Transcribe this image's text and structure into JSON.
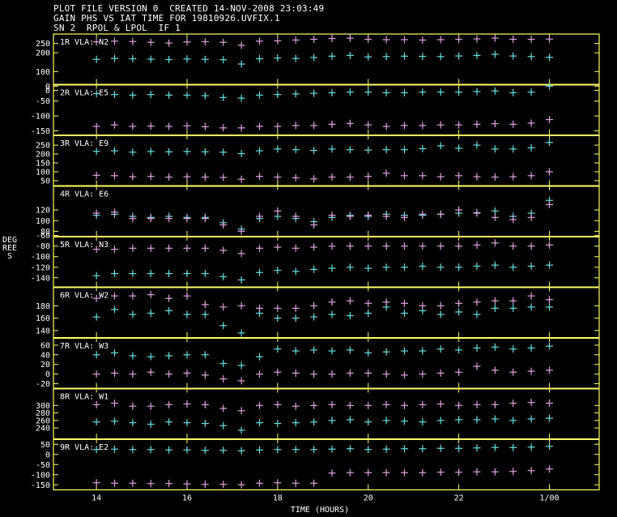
{
  "header": {
    "line1": "PLOT FILE VERSION 0  CREATED 14-NOV-2008 23:03:49",
    "line2": "GAIN PHS VS IAT TIME FOR 19810926.UVFIX.1",
    "line3": "SN 2  RPOL & LPOL  IF 1"
  },
  "chart_data": {
    "type": "scatter",
    "xlabel": "TIME (HOURS)",
    "ylabel": "DEGREES",
    "xlim": [
      13.05,
      25.1
    ],
    "x_ticks": [
      14,
      16,
      18,
      20,
      22,
      24
    ],
    "x_tick_labels": [
      "14",
      "16",
      "18",
      "20",
      "22",
      "1/00"
    ],
    "x": [
      14.0,
      14.4,
      14.8,
      15.2,
      15.6,
      16.0,
      16.4,
      16.8,
      17.2,
      17.6,
      18.0,
      18.4,
      18.8,
      19.2,
      19.6,
      20.0,
      20.4,
      20.8,
      21.2,
      21.6,
      22.0,
      22.4,
      22.8,
      23.2,
      23.6,
      24.0
    ],
    "colors": {
      "rpol": "#66e0e0",
      "lpol": "#e0a0e0",
      "panel_border": "#ffff66"
    },
    "panels": [
      {
        "label": "1R VLA: N2",
        "ylim": [
          30,
          300
        ],
        "y_ticks": [
          250,
          200,
          100,
          0
        ],
        "y_tick_labels": [
          "250",
          "200",
          "100",
          "0"
        ],
        "series": [
          {
            "pol": "rpol",
            "values": [
              165,
              170,
              168,
              166,
              164,
              167,
              165,
              163,
              140,
              168,
              172,
              170,
              175,
              182,
              186,
              178,
              180,
              182,
              181,
              180,
              183,
              186,
              192,
              183,
              180,
              176
            ]
          },
          {
            "pol": "lpol",
            "values": [
              258,
              262,
              260,
              256,
              252,
              258,
              259,
              256,
              240,
              262,
              264,
              268,
              272,
              276,
              278,
              272,
              270,
              270,
              268,
              270,
              272,
              274,
              278,
              272,
              272,
              273
            ]
          }
        ]
      },
      {
        "label": "2R VLA: E5",
        "ylim": [
          -165,
          5
        ],
        "y_ticks": [
          0,
          -50,
          -100,
          -150
        ],
        "y_tick_labels": [
          "0",
          "-50",
          "-100",
          "-150"
        ],
        "series": [
          {
            "pol": "rpol",
            "values": [
              -25,
              -28,
              -30,
              -28,
              -30,
              -30,
              -32,
              -38,
              -40,
              -30,
              -28,
              -26,
              -24,
              -22,
              -20,
              -20,
              -22,
              -22,
              -20,
              -20,
              -20,
              -18,
              -16,
              -22,
              -20,
              0
            ]
          },
          {
            "pol": "lpol",
            "values": [
              -135,
              -130,
              -135,
              -134,
              -135,
              -133,
              -136,
              -140,
              -140,
              -135,
              -135,
              -132,
              -132,
              -128,
              -125,
              -130,
              -135,
              -132,
              -132,
              -130,
              -130,
              -128,
              -126,
              -128,
              -124,
              -112
            ]
          }
        ]
      },
      {
        "label": "3R VLA: E9",
        "ylim": [
          20,
          305
        ],
        "y_ticks": [
          250,
          200,
          150,
          100,
          50
        ],
        "y_tick_labels": [
          "250",
          "200",
          "150",
          "100",
          "50"
        ],
        "series": [
          {
            "pol": "rpol",
            "values": [
              215,
              218,
              210,
              214,
              212,
              214,
              212,
              210,
              202,
              218,
              228,
              224,
              220,
              228,
              224,
              222,
              224,
              224,
              230,
              246,
              232,
              250,
              228,
              228,
              235,
              265
            ]
          },
          {
            "pol": "lpol",
            "values": [
              80,
              78,
              72,
              74,
              70,
              72,
              70,
              68,
              58,
              74,
              70,
              66,
              60,
              70,
              70,
              74,
              92,
              78,
              78,
              72,
              78,
              72,
              70,
              72,
              78,
              100
            ]
          }
        ]
      },
      {
        "label": "4R VLA: E6",
        "ylim": [
          70,
          165
        ],
        "y_ticks": [
          120,
          100,
          80
        ],
        "y_tick_labels": [
          "120",
          "100",
          "80"
        ],
        "series": [
          {
            "pol": "rpol",
            "values": [
              110,
              112,
              108,
              106,
              108,
              106,
              106,
              96,
              84,
              104,
              108,
              104,
              98,
              106,
              110,
              108,
              112,
              110,
              110,
              112,
              114,
              115,
              118,
              108,
              114,
              138
            ]
          },
          {
            "pol": "lpol",
            "values": [
              114,
              116,
              104,
              104,
              104,
              104,
              104,
              92,
              80,
              108,
              118,
              108,
              92,
              110,
              108,
              110,
              108,
              106,
              112,
              112,
              120,
              114,
              106,
              102,
              106,
              130
            ]
          }
        ]
      },
      {
        "label": "5R VLA: N3",
        "ylim": [
          -158,
          -62
        ],
        "y_ticks": [
          -60,
          -80,
          -100,
          -120,
          -140
        ],
        "y_tick_labels": [
          "-60",
          "-80",
          "-100",
          "-120",
          "-140"
        ],
        "series": [
          {
            "pol": "rpol",
            "values": [
              -136,
              -132,
              -132,
              -132,
              -132,
              -132,
              -132,
              -138,
              -144,
              -130,
              -126,
              -128,
              -124,
              -122,
              -120,
              -122,
              -120,
              -120,
              -118,
              -120,
              -120,
              -118,
              -116,
              -120,
              -118,
              -116
            ]
          },
          {
            "pol": "lpol",
            "values": [
              -86,
              -86,
              -84,
              -84,
              -84,
              -84,
              -84,
              -88,
              -94,
              -84,
              -82,
              -84,
              -82,
              -80,
              -80,
              -80,
              -80,
              -80,
              -80,
              -80,
              -80,
              -78,
              -74,
              -80,
              -80,
              -78
            ]
          }
        ]
      },
      {
        "label": "6R VLA: W2",
        "ylim": [
          128,
          210
        ],
        "y_ticks": [
          180,
          160,
          140
        ],
        "y_tick_labels": [
          "180",
          "160",
          "140"
        ],
        "series": [
          {
            "pol": "rpol",
            "values": [
              162,
              174,
              166,
              168,
              172,
              166,
              166,
              148,
              136,
              168,
              160,
              160,
              162,
              166,
              164,
              168,
              178,
              168,
              172,
              166,
              170,
              166,
              176,
              176,
              178,
              178
            ]
          },
          {
            "pol": "lpol",
            "values": [
              192,
              196,
              196,
              198,
              192,
              196,
              182,
              178,
              180,
              176,
              176,
              176,
              180,
              186,
              188,
              184,
              186,
              184,
              180,
              180,
              184,
              186,
              188,
              188,
              196,
              190
            ]
          }
        ]
      },
      {
        "label": "7R VLA: W3",
        "ylim": [
          -30,
          75
        ],
        "y_ticks": [
          60,
          40,
          20,
          0,
          -20
        ],
        "y_tick_labels": [
          "60",
          "40",
          "20",
          "0",
          "-20"
        ],
        "series": [
          {
            "pol": "rpol",
            "values": [
              40,
              44,
              38,
              36,
              38,
              40,
              40,
              22,
              18,
              36,
              52,
              48,
              50,
              48,
              50,
              44,
              46,
              48,
              48,
              52,
              50,
              54,
              56,
              52,
              54,
              58
            ]
          },
          {
            "pol": "lpol",
            "values": [
              0,
              2,
              0,
              4,
              0,
              2,
              -2,
              -10,
              -14,
              0,
              4,
              2,
              0,
              0,
              2,
              2,
              0,
              -2,
              0,
              2,
              4,
              16,
              8,
              4,
              6,
              8
            ]
          }
        ]
      },
      {
        "label": "8R VLA: W1",
        "ylim": [
          210,
          345
        ],
        "y_ticks": [
          300,
          280,
          260,
          240
        ],
        "y_tick_labels": [
          "300",
          "280",
          "260",
          "240"
        ],
        "series": [
          {
            "pol": "rpol",
            "values": [
              256,
              258,
              254,
              250,
              256,
              254,
              252,
              246,
              234,
              254,
              252,
              254,
              256,
              260,
              262,
              256,
              260,
              258,
              256,
              260,
              262,
              262,
              264,
              260,
              264,
              266
            ]
          },
          {
            "pol": "lpol",
            "values": [
              302,
              306,
              298,
              298,
              302,
              304,
              302,
              292,
              286,
              300,
              302,
              298,
              300,
              302,
              300,
              300,
              302,
              300,
              302,
              304,
              300,
              302,
              302,
              306,
              308,
              306
            ]
          }
        ]
      },
      {
        "label": "9R VLA: E2",
        "ylim": [
          -175,
          75
        ],
        "y_ticks": [
          50,
          0,
          -50,
          -100,
          -150
        ],
        "y_tick_labels": [
          "50",
          "0",
          "-50",
          "-100",
          "-150"
        ],
        "series": [
          {
            "pol": "rpol",
            "values": [
              24,
              26,
              24,
              24,
              22,
              22,
              20,
              20,
              18,
              22,
              24,
              24,
              24,
              26,
              28,
              24,
              26,
              28,
              28,
              30,
              30,
              32,
              34,
              34,
              36,
              40
            ]
          },
          {
            "pol": "lpol",
            "values": [
              -140,
              -142,
              -142,
              -144,
              -144,
              -146,
              -148,
              -148,
              -150,
              -142,
              -140,
              -142,
              -142,
              -92,
              -90,
              -90,
              -90,
              -90,
              -90,
              -88,
              -88,
              -86,
              -86,
              -84,
              -80,
              -72
            ]
          }
        ]
      }
    ]
  }
}
